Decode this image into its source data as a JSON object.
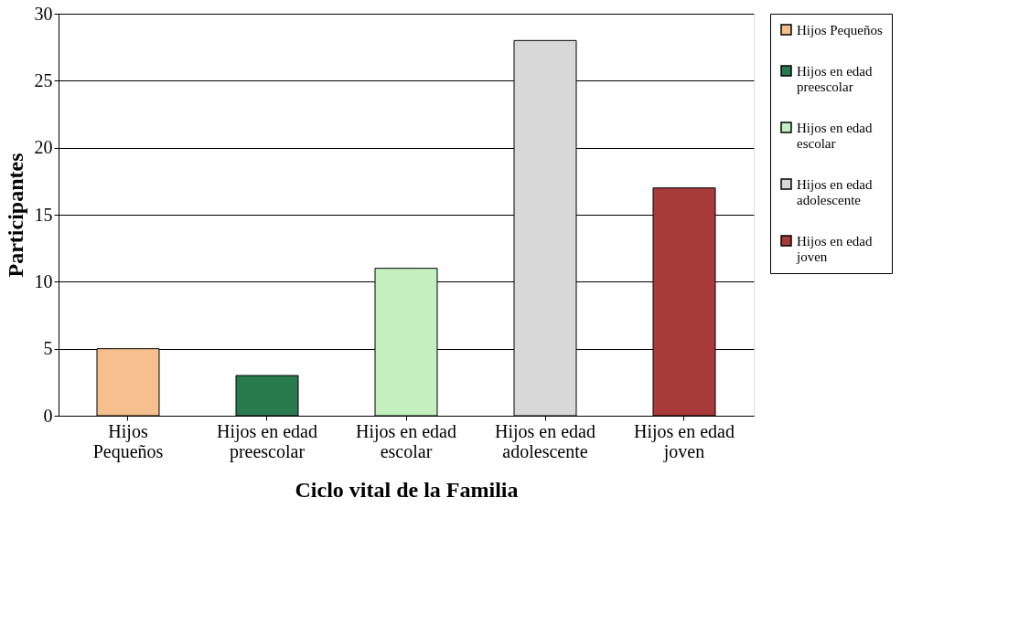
{
  "chart_data": {
    "type": "bar",
    "xlabel": "Ciclo vital de la Familia",
    "ylabel": "Participantes",
    "categories": [
      "Hijos Pequeños",
      "Hijos en edad preescolar",
      "Hijos en edad escolar",
      "Hijos en edad adolescente",
      "Hijos en edad joven"
    ],
    "series": [
      {
        "name": "Hijos Pequeños",
        "color": "#f5c08e",
        "values": [
          5,
          null,
          null,
          null,
          null
        ]
      },
      {
        "name": "Hijos en edad preescolar",
        "color": "#2a7a50",
        "values": [
          null,
          3,
          null,
          null,
          null
        ]
      },
      {
        "name": "Hijos en edad escolar",
        "color": "#c4f0c0",
        "values": [
          null,
          null,
          11,
          null,
          null
        ]
      },
      {
        "name": "Hijos en edad adolescente",
        "color": "#d8d8d8",
        "values": [
          null,
          null,
          null,
          28,
          null
        ]
      },
      {
        "name": "Hijos en edad joven",
        "color": "#a83a3a",
        "values": [
          null,
          null,
          null,
          null,
          17
        ]
      }
    ],
    "ylim": [
      0,
      30
    ],
    "yticks": [
      0,
      5,
      10,
      15,
      20,
      25,
      30
    ],
    "grid": "y",
    "legend": "right"
  }
}
